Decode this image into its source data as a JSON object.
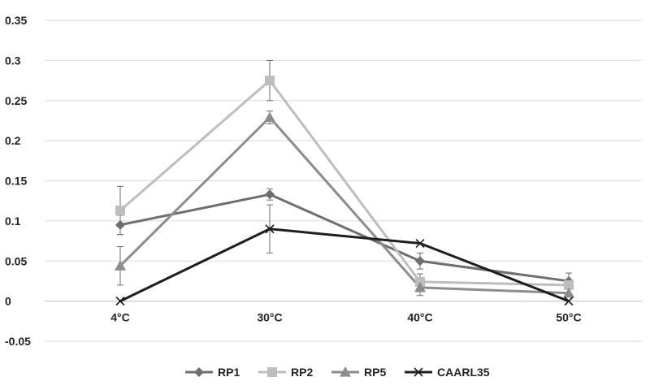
{
  "chart_data": {
    "type": "line",
    "categories": [
      "4°C",
      "30°C",
      "40°C",
      "50°C"
    ],
    "ylim": [
      -0.05,
      0.35
    ],
    "yticks": [
      "-0.05",
      "0",
      "0.05",
      "0.1",
      "0.15",
      "0.2",
      "0.25",
      "0.3",
      "0.35"
    ],
    "ytick_values": [
      -0.05,
      0,
      0.05,
      0.1,
      0.15,
      0.2,
      0.25,
      0.3,
      0.35
    ],
    "grid": "horizontal",
    "legend_position": "bottom",
    "series": [
      {
        "name": "RP1",
        "marker": "diamond",
        "color": "#6e6e6e",
        "values": [
          0.095,
          0.133,
          0.05,
          0.025
        ],
        "errors": [
          0.012,
          0.007,
          0.01,
          0.01
        ]
      },
      {
        "name": "RP2",
        "marker": "square",
        "color": "#bdbdbd",
        "values": [
          0.113,
          0.275,
          0.024,
          0.02
        ],
        "errors": [
          0.03,
          0.025,
          0.01,
          0.0
        ]
      },
      {
        "name": "RP5",
        "marker": "triangle",
        "color": "#8c8c8c",
        "values": [
          0.044,
          0.229,
          0.017,
          0.01
        ],
        "errors": [
          0.024,
          0.008,
          0.01,
          0.0
        ]
      },
      {
        "name": "CAARL35",
        "marker": "x",
        "color": "#1e1e1e",
        "values": [
          0.0,
          0.09,
          0.072,
          0.0
        ],
        "errors": [
          0.0,
          0.03,
          0.0,
          0.0
        ]
      }
    ]
  }
}
